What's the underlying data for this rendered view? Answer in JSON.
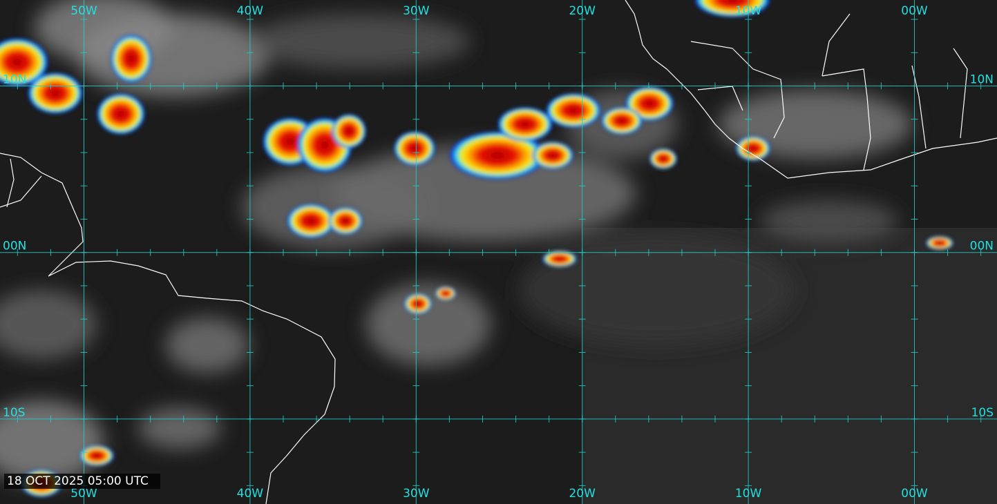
{
  "map": {
    "longitude_labels": [
      "50W",
      "40W",
      "30W",
      "20W",
      "10W",
      "00W"
    ],
    "latitude_labels": [
      "10N",
      "00N",
      "10S"
    ],
    "timestamp": "18 OCT 2025 05:00 UTC"
  }
}
